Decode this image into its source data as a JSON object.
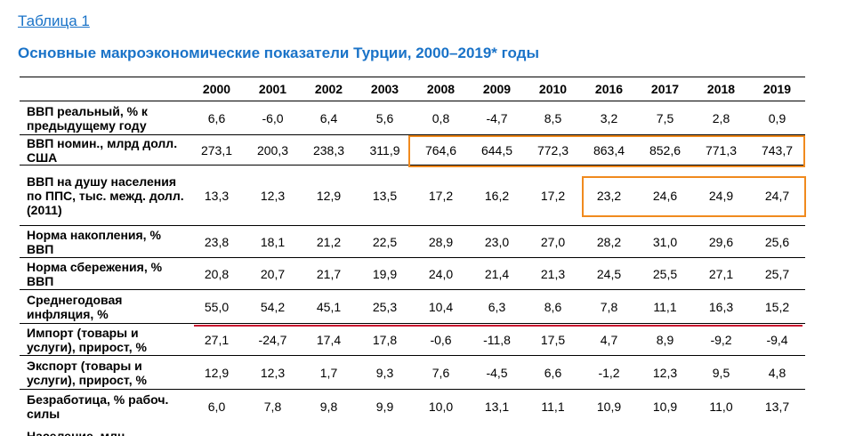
{
  "table_link": "Таблица 1",
  "title": "Основные макроэкономические показатели Турции, 2000–2019* годы",
  "years": [
    "2000",
    "2001",
    "2002",
    "2003",
    "2008",
    "2009",
    "2010",
    "2016",
    "2017",
    "2018",
    "2019"
  ],
  "rows": [
    {
      "label": "ВВП реальный, % к предыдущему году",
      "values": [
        "6,6",
        "-6,0",
        "6,4",
        "5,6",
        "0,8",
        "-4,7",
        "8,5",
        "3,2",
        "7,5",
        "2,8",
        "0,9"
      ]
    },
    {
      "label": "ВВП номин., млрд долл. США",
      "values": [
        "273,1",
        "200,3",
        "238,3",
        "311,9",
        "764,6",
        "644,5",
        "772,3",
        "863,4",
        "852,6",
        "771,3",
        "743,7"
      ]
    },
    {
      "label": "ВВП на душу населения по ППС, тыс. межд. долл. (2011)",
      "values": [
        "13,3",
        "12,3",
        "12,9",
        "13,5",
        "17,2",
        "16,2",
        "17,2",
        "23,2",
        "24,6",
        "24,9",
        "24,7"
      ]
    },
    {
      "label": "Норма накопления, % ВВП",
      "values": [
        "23,8",
        "18,1",
        "21,2",
        "22,5",
        "28,9",
        "23,0",
        "27,0",
        "28,2",
        "31,0",
        "29,6",
        "25,6"
      ]
    },
    {
      "label": "Норма сбережения, % ВВП",
      "values": [
        "20,8",
        "20,7",
        "21,7",
        "19,9",
        "24,0",
        "21,4",
        "21,3",
        "24,5",
        "25,5",
        "27,1",
        "25,7"
      ]
    },
    {
      "label": "Среднегодовая инфляция, %",
      "values": [
        "55,0",
        "54,2",
        "45,1",
        "25,3",
        "10,4",
        "6,3",
        "8,6",
        "7,8",
        "11,1",
        "16,3",
        "15,2"
      ]
    },
    {
      "label": "Импорт (товары и услуги), прирост, %",
      "values": [
        "27,1",
        "-24,7",
        "17,4",
        "17,8",
        "-0,6",
        "-11,8",
        "17,5",
        "4,7",
        "8,9",
        "-9,2",
        "-9,4"
      ]
    },
    {
      "label": "Экспорт (товары и услуги), прирост, %",
      "values": [
        "12,9",
        "12,3",
        "1,7",
        "9,3",
        "7,6",
        "-4,5",
        "6,6",
        "-1,2",
        "12,3",
        "9,5",
        "4,8"
      ]
    },
    {
      "label": "Безработица, % рабоч. силы",
      "values": [
        "6,0",
        "7,8",
        "9,8",
        "9,9",
        "10,0",
        "13,1",
        "11,1",
        "10,9",
        "10,9",
        "11,0",
        "13,7"
      ]
    }
  ],
  "cutoff_text": "Население, млн",
  "colors": {
    "accent": "#1a73c8",
    "highlight_box": "#f08a1e",
    "underline": "#c8102e"
  }
}
